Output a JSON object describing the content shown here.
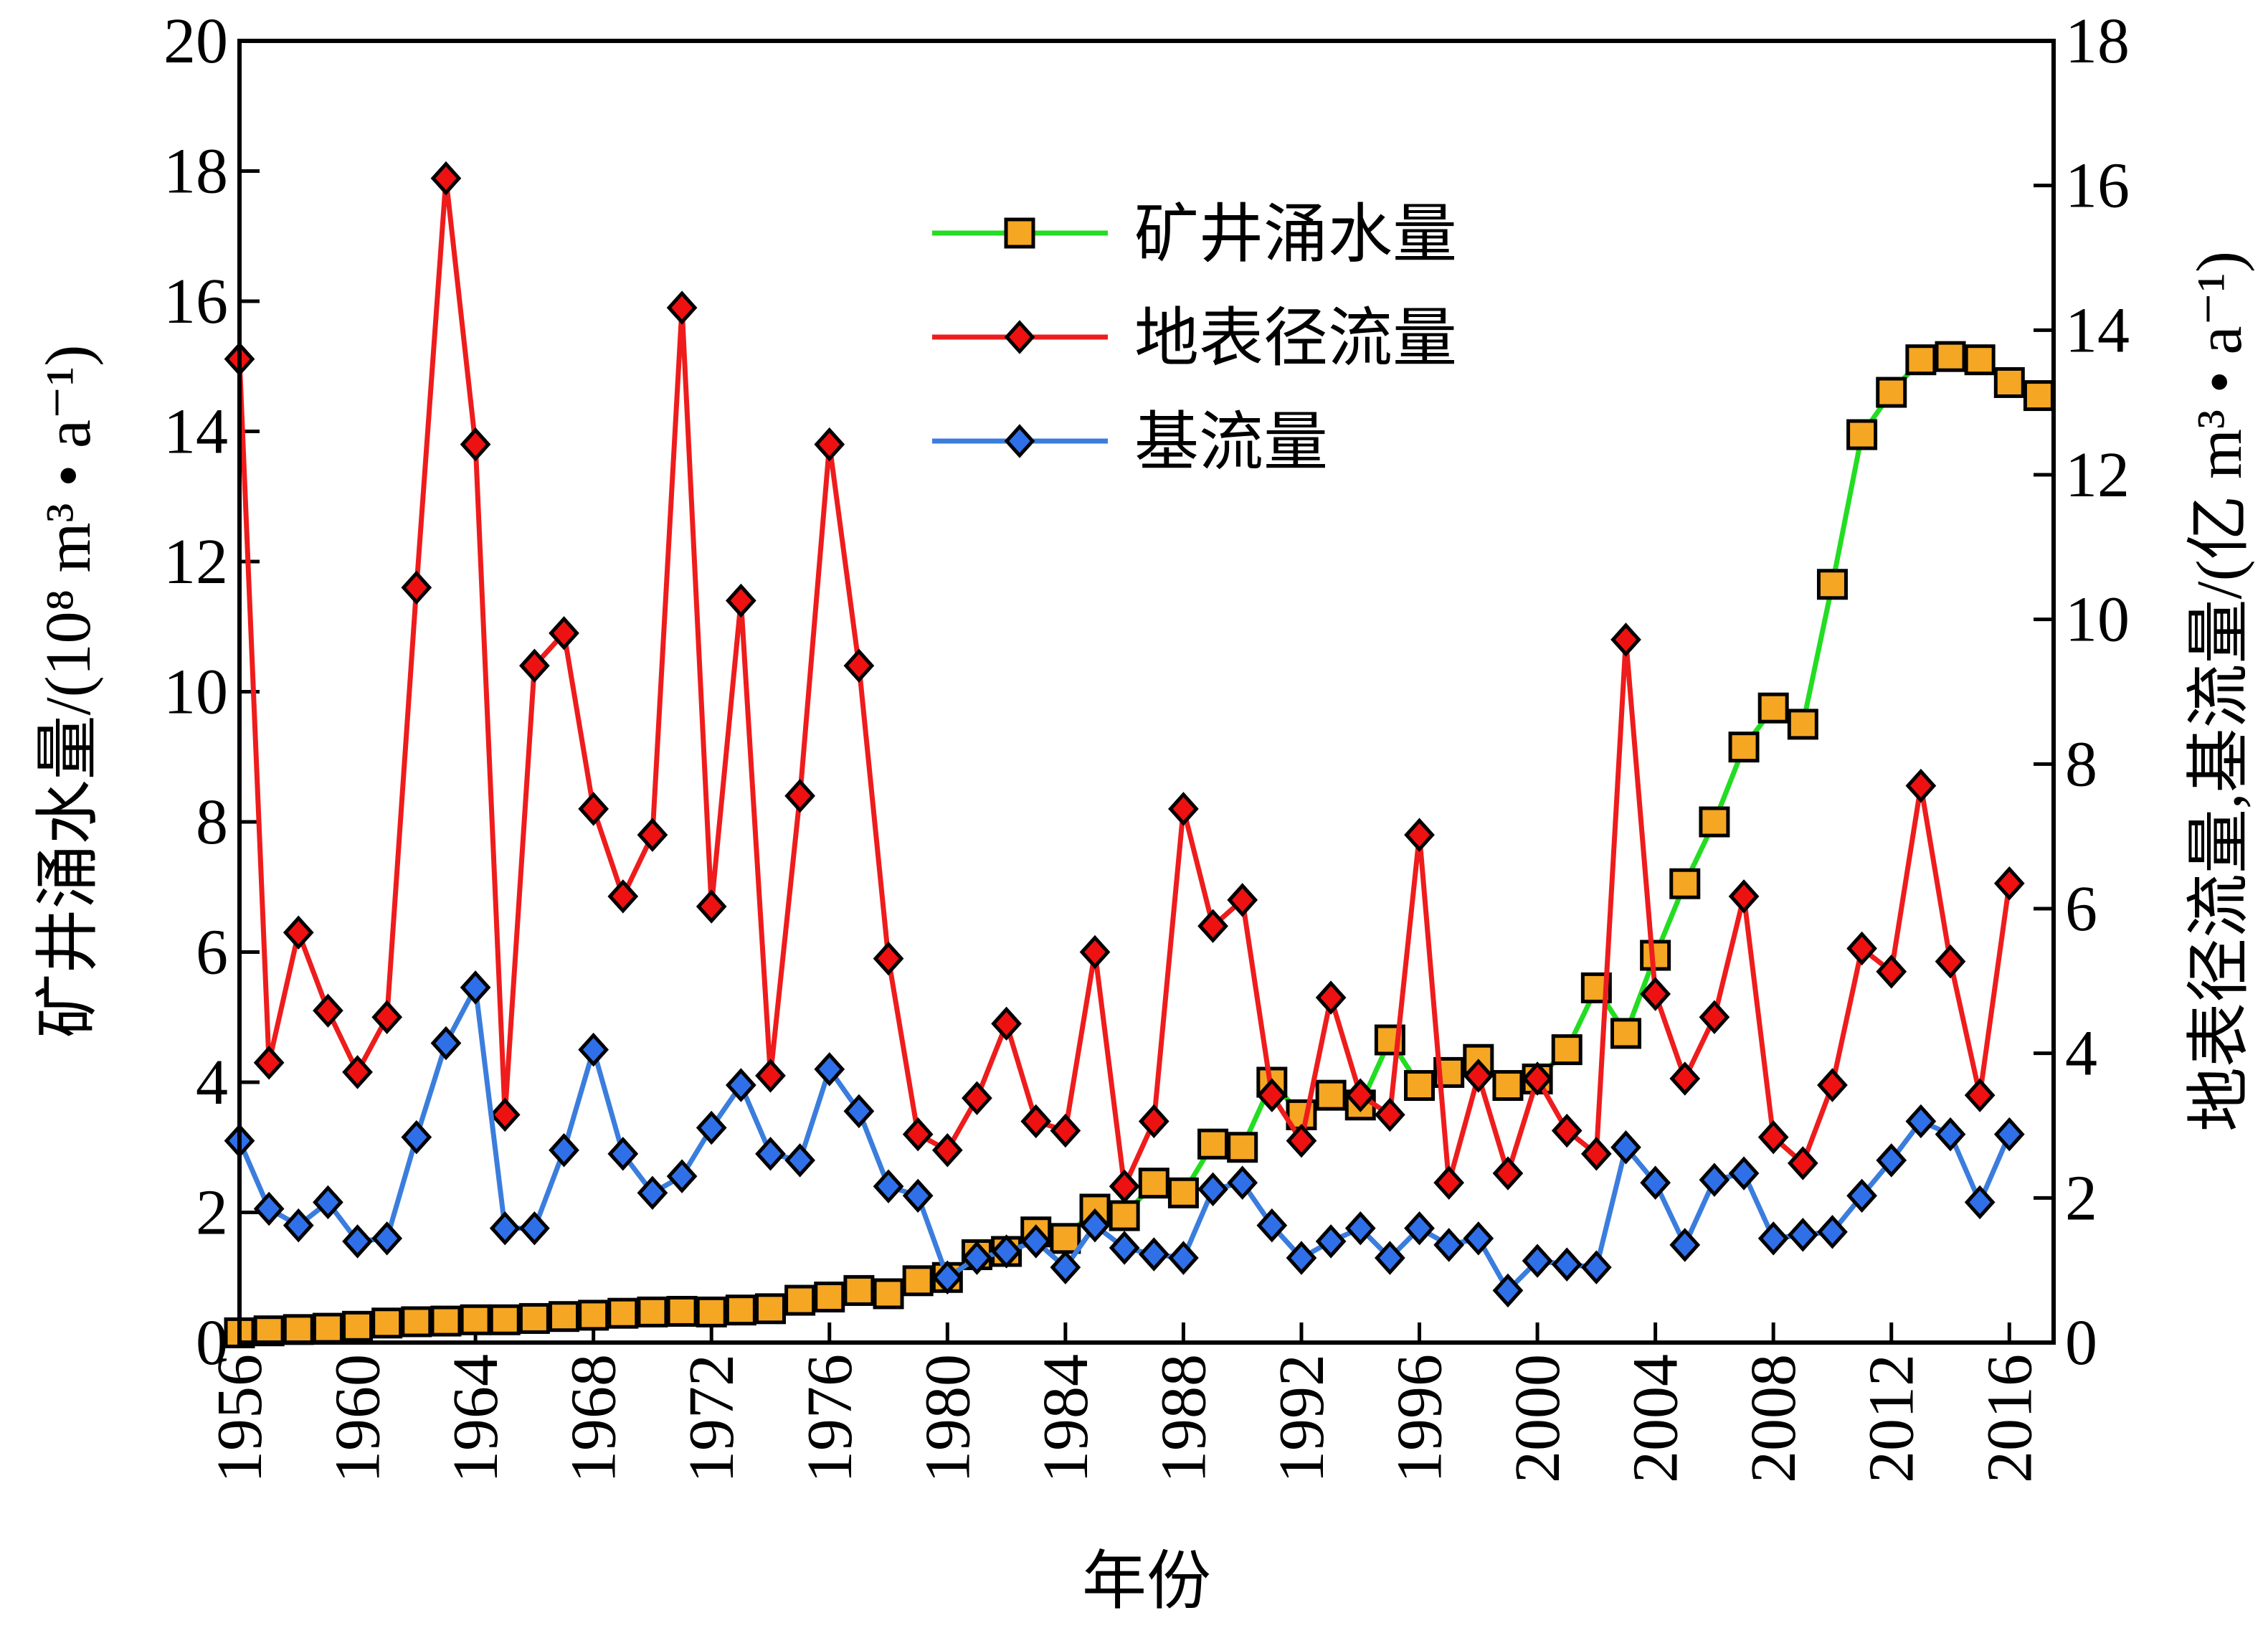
{
  "chart_data": {
    "type": "line",
    "xlabel": "年份",
    "ylabel": "矿井涌水量/(10⁸ m³ • a⁻¹)",
    "y2label": "地表径流量,基流量/(亿 m³ • a⁻¹)",
    "xlim": [
      1956,
      2017.5
    ],
    "xticks": [
      1956,
      1960,
      1964,
      1968,
      1972,
      1976,
      1980,
      1984,
      1988,
      1992,
      1996,
      2000,
      2004,
      2008,
      2012,
      2016
    ],
    "ylim": [
      0,
      20
    ],
    "yticks": [
      0,
      2,
      4,
      6,
      8,
      10,
      12,
      14,
      16,
      18,
      20
    ],
    "y2lim": [
      0,
      18
    ],
    "y2ticks": [
      0,
      2,
      4,
      6,
      8,
      10,
      12,
      14,
      16,
      18
    ],
    "legend": "upper center",
    "series": [
      {
        "name": "矿井涌水量",
        "color": "#22dd22",
        "marker": "square",
        "marker_color": "#f5a623",
        "x": [
          1956,
          1957,
          1958,
          1959,
          1960,
          1961,
          1962,
          1963,
          1964,
          1965,
          1966,
          1967,
          1968,
          1969,
          1970,
          1971,
          1972,
          1973,
          1974,
          1975,
          1976,
          1977,
          1978,
          1979,
          1980,
          1981,
          1982,
          1983,
          1984,
          1985,
          1986,
          1987,
          1988,
          1989,
          1990,
          1991,
          1992,
          1993,
          1994,
          1995,
          1996,
          1997,
          1998,
          1999,
          2000,
          2001,
          2002,
          2003,
          2004,
          2005,
          2006,
          2007,
          2008,
          2009,
          2010,
          2011,
          2012,
          2013,
          2014,
          2015,
          2016,
          2017
        ],
        "values": [
          0.15,
          0.18,
          0.2,
          0.22,
          0.25,
          0.3,
          0.32,
          0.33,
          0.35,
          0.35,
          0.37,
          0.4,
          0.42,
          0.45,
          0.47,
          0.48,
          0.47,
          0.5,
          0.52,
          0.65,
          0.7,
          0.8,
          0.75,
          0.95,
          1.0,
          1.35,
          1.4,
          1.7,
          1.6,
          2.05,
          1.95,
          2.45,
          2.3,
          3.05,
          3.0,
          4.0,
          3.5,
          3.8,
          3.65,
          4.65,
          3.95,
          4.15,
          4.35,
          3.95,
          4.05,
          4.5,
          5.45,
          4.75,
          5.95,
          7.05,
          8.0,
          9.15,
          9.75,
          9.5,
          11.65,
          13.95,
          14.6,
          15.1,
          15.15,
          15.1,
          14.75,
          14.55
        ]
      },
      {
        "name": "地表径流量",
        "color": "#ee1c1c",
        "marker": "diamond",
        "marker_color": "#ee1111",
        "axis": "y2",
        "x": [
          1956,
          1957,
          1958,
          1959,
          1960,
          1961,
          1962,
          1963,
          1964,
          1965,
          1966,
          1967,
          1968,
          1969,
          1970,
          1971,
          1972,
          1973,
          1974,
          1975,
          1976,
          1977,
          1978,
          1979,
          1980,
          1981,
          1982,
          1983,
          1984,
          1985,
          1986,
          1987,
          1988,
          1989,
          1990,
          1991,
          1992,
          1993,
          1994,
          1995,
          1996,
          1997,
          1998,
          1999,
          2000,
          2001,
          2002,
          2003,
          2004,
          2005,
          2006,
          2007,
          2008,
          2009,
          2010,
          2011,
          2012,
          2013,
          2014,
          2015,
          2016
        ],
        "values": [
          13.6,
          3.87,
          5.67,
          4.59,
          3.74,
          4.5,
          10.44,
          16.1,
          12.42,
          3.15,
          9.36,
          9.81,
          7.38,
          6.17,
          7.02,
          14.31,
          6.03,
          10.26,
          3.69,
          7.56,
          12.42,
          9.36,
          5.31,
          2.88,
          2.66,
          3.38,
          4.41,
          3.06,
          2.93,
          5.4,
          2.16,
          3.06,
          7.38,
          5.76,
          6.12,
          3.42,
          2.79,
          4.77,
          3.42,
          3.15,
          7.02,
          2.21,
          3.69,
          2.34,
          3.65,
          2.93,
          2.61,
          9.72,
          4.82,
          3.65,
          4.5,
          6.17,
          2.84,
          2.48,
          3.56,
          5.45,
          5.13,
          7.7,
          5.27,
          3.42,
          6.35
        ]
      },
      {
        "name": "基流量",
        "color": "#3b7ddd",
        "marker": "diamond",
        "marker_color": "#2f6fe8",
        "axis": "y2",
        "x": [
          1956,
          1957,
          1958,
          1959,
          1960,
          1961,
          1962,
          1963,
          1964,
          1965,
          1966,
          1967,
          1968,
          1969,
          1970,
          1971,
          1972,
          1973,
          1974,
          1975,
          1976,
          1977,
          1978,
          1979,
          1980,
          1981,
          1982,
          1983,
          1984,
          1985,
          1986,
          1987,
          1988,
          1989,
          1990,
          1991,
          1992,
          1993,
          1994,
          1995,
          1996,
          1997,
          1998,
          1999,
          2000,
          2001,
          2002,
          2003,
          2004,
          2005,
          2006,
          2007,
          2008,
          2009,
          2010,
          2011,
          2012,
          2013,
          2014,
          2015,
          2016
        ],
        "values": [
          2.79,
          1.85,
          1.62,
          1.94,
          1.4,
          1.44,
          2.84,
          4.14,
          4.91,
          1.58,
          1.58,
          2.66,
          4.05,
          2.61,
          2.07,
          2.3,
          2.97,
          3.56,
          2.61,
          2.52,
          3.78,
          3.2,
          2.16,
          2.03,
          0.9,
          1.17,
          1.26,
          1.4,
          1.04,
          1.62,
          1.31,
          1.22,
          1.17,
          2.12,
          2.21,
          1.62,
          1.17,
          1.4,
          1.58,
          1.17,
          1.58,
          1.35,
          1.44,
          0.72,
          1.13,
          1.08,
          1.04,
          2.7,
          2.21,
          1.35,
          2.25,
          2.34,
          1.44,
          1.49,
          1.53,
          2.03,
          2.52,
          3.06,
          2.88,
          1.94,
          2.88
        ]
      }
    ]
  }
}
